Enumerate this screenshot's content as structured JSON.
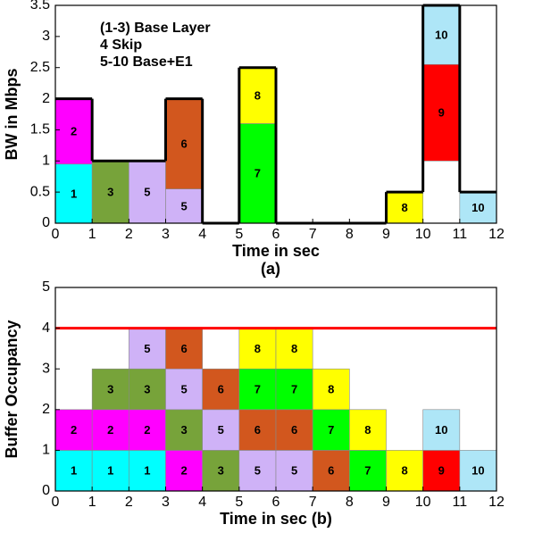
{
  "chart_data": [
    {
      "type": "bar",
      "x_label": "Time in sec",
      "caption": "(a)",
      "y_label": "BW in Mbps",
      "annotations": [
        "(1-3) Base Layer",
        "4 Skip",
        "5-10 Base+E1"
      ],
      "xlim": [
        0,
        12
      ],
      "xticks": [
        0,
        1,
        2,
        3,
        4,
        5,
        6,
        7,
        8,
        9,
        10,
        11,
        12
      ],
      "ylim": [
        0,
        3.5
      ],
      "yticks": [
        0,
        0.5,
        1,
        1.5,
        2,
        2.5,
        3,
        3.5
      ],
      "blocks": [
        {
          "label": "1",
          "color": "#00ffff",
          "x": [
            0,
            1
          ],
          "y": [
            0,
            0.95
          ]
        },
        {
          "label": "2",
          "color": "#ff00ff",
          "x": [
            0,
            1
          ],
          "y": [
            0.95,
            2
          ]
        },
        {
          "label": "3",
          "color": "#77a33a",
          "x": [
            1,
            2
          ],
          "y": [
            0,
            1
          ]
        },
        {
          "label": "5",
          "color": "#cfb2f7",
          "x": [
            2,
            3
          ],
          "y": [
            0,
            1
          ]
        },
        {
          "label": "5",
          "color": "#cfb2f7",
          "x": [
            3,
            4
          ],
          "y": [
            0,
            0.55
          ]
        },
        {
          "label": "6",
          "color": "#d2571e",
          "x": [
            3,
            4
          ],
          "y": [
            0.55,
            2
          ]
        },
        {
          "label": "7",
          "color": "#00ff00",
          "x": [
            5,
            6
          ],
          "y": [
            0,
            1.6
          ]
        },
        {
          "label": "8",
          "color": "#ffff00",
          "x": [
            5,
            6
          ],
          "y": [
            1.6,
            2.5
          ]
        },
        {
          "label": "8",
          "color": "#ffff00",
          "x": [
            9,
            10
          ],
          "y": [
            0,
            0.5
          ]
        },
        {
          "label": "9",
          "color": "#ff0000",
          "x": [
            10,
            11
          ],
          "y": [
            1,
            2.55
          ]
        },
        {
          "label": "10",
          "color": "#aee6f7",
          "x": [
            10,
            11
          ],
          "y": [
            2.55,
            3.5
          ]
        },
        {
          "label": "10",
          "color": "#aee6f7",
          "x": [
            11,
            12
          ],
          "y": [
            0,
            0.5
          ]
        }
      ],
      "step_line": {
        "color": "#000000",
        "edges": [
          0,
          1,
          3,
          4,
          5,
          6,
          9,
          10,
          11,
          12
        ],
        "values": [
          2,
          1,
          2,
          0,
          2.5,
          0,
          0.5,
          3.5,
          0.5
        ]
      }
    },
    {
      "type": "bar",
      "x_label": "Time in sec (b)",
      "y_label": "Buffer Occupancy",
      "xlim": [
        0,
        12
      ],
      "xticks": [
        0,
        1,
        2,
        3,
        4,
        5,
        6,
        7,
        8,
        9,
        10,
        11,
        12
      ],
      "ylim": [
        0,
        5
      ],
      "yticks": [
        0,
        1,
        2,
        3,
        4,
        5
      ],
      "threshold": {
        "value": 4,
        "color": "#ff0000"
      },
      "blocks": [
        {
          "label": "1",
          "color": "#00ffff",
          "x": [
            0,
            1
          ],
          "y": [
            0,
            1
          ]
        },
        {
          "label": "2",
          "color": "#ff00ff",
          "x": [
            0,
            1
          ],
          "y": [
            1,
            2
          ]
        },
        {
          "label": "1",
          "color": "#00ffff",
          "x": [
            1,
            2
          ],
          "y": [
            0,
            1
          ]
        },
        {
          "label": "2",
          "color": "#ff00ff",
          "x": [
            1,
            2
          ],
          "y": [
            1,
            2
          ]
        },
        {
          "label": "3",
          "color": "#77a33a",
          "x": [
            1,
            2
          ],
          "y": [
            2,
            3
          ]
        },
        {
          "label": "1",
          "color": "#00ffff",
          "x": [
            2,
            3
          ],
          "y": [
            0,
            1
          ]
        },
        {
          "label": "2",
          "color": "#ff00ff",
          "x": [
            2,
            3
          ],
          "y": [
            1,
            2
          ]
        },
        {
          "label": "3",
          "color": "#77a33a",
          "x": [
            2,
            3
          ],
          "y": [
            2,
            3
          ]
        },
        {
          "label": "5",
          "color": "#cfb2f7",
          "x": [
            2,
            3
          ],
          "y": [
            3,
            4
          ]
        },
        {
          "label": "2",
          "color": "#ff00ff",
          "x": [
            3,
            4
          ],
          "y": [
            0,
            1
          ]
        },
        {
          "label": "3",
          "color": "#77a33a",
          "x": [
            3,
            4
          ],
          "y": [
            1,
            2
          ]
        },
        {
          "label": "5",
          "color": "#cfb2f7",
          "x": [
            3,
            4
          ],
          "y": [
            2,
            3
          ]
        },
        {
          "label": "6",
          "color": "#d2571e",
          "x": [
            3,
            4
          ],
          "y": [
            3,
            4
          ]
        },
        {
          "label": "3",
          "color": "#77a33a",
          "x": [
            4,
            5
          ],
          "y": [
            0,
            1
          ]
        },
        {
          "label": "5",
          "color": "#cfb2f7",
          "x": [
            4,
            5
          ],
          "y": [
            1,
            2
          ]
        },
        {
          "label": "6",
          "color": "#d2571e",
          "x": [
            4,
            5
          ],
          "y": [
            2,
            3
          ]
        },
        {
          "label": "5",
          "color": "#cfb2f7",
          "x": [
            5,
            6
          ],
          "y": [
            0,
            1
          ]
        },
        {
          "label": "6",
          "color": "#d2571e",
          "x": [
            5,
            6
          ],
          "y": [
            1,
            2
          ]
        },
        {
          "label": "7",
          "color": "#00ff00",
          "x": [
            5,
            6
          ],
          "y": [
            2,
            3
          ]
        },
        {
          "label": "8",
          "color": "#ffff00",
          "x": [
            5,
            6
          ],
          "y": [
            3,
            4
          ]
        },
        {
          "label": "5",
          "color": "#cfb2f7",
          "x": [
            6,
            7
          ],
          "y": [
            0,
            1
          ]
        },
        {
          "label": "6",
          "color": "#d2571e",
          "x": [
            6,
            7
          ],
          "y": [
            1,
            2
          ]
        },
        {
          "label": "7",
          "color": "#00ff00",
          "x": [
            6,
            7
          ],
          "y": [
            2,
            3
          ]
        },
        {
          "label": "8",
          "color": "#ffff00",
          "x": [
            6,
            7
          ],
          "y": [
            3,
            4
          ]
        },
        {
          "label": "6",
          "color": "#d2571e",
          "x": [
            7,
            8
          ],
          "y": [
            0,
            1
          ]
        },
        {
          "label": "7",
          "color": "#00ff00",
          "x": [
            7,
            8
          ],
          "y": [
            1,
            2
          ]
        },
        {
          "label": "8",
          "color": "#ffff00",
          "x": [
            7,
            8
          ],
          "y": [
            2,
            3
          ]
        },
        {
          "label": "7",
          "color": "#00ff00",
          "x": [
            8,
            9
          ],
          "y": [
            0,
            1
          ]
        },
        {
          "label": "8",
          "color": "#ffff00",
          "x": [
            8,
            9
          ],
          "y": [
            1,
            2
          ]
        },
        {
          "label": "8",
          "color": "#ffff00",
          "x": [
            9,
            10
          ],
          "y": [
            0,
            1
          ]
        },
        {
          "label": "9",
          "color": "#ff0000",
          "x": [
            10,
            11
          ],
          "y": [
            0,
            1
          ]
        },
        {
          "label": "10",
          "color": "#aee6f7",
          "x": [
            10,
            11
          ],
          "y": [
            1,
            2
          ]
        },
        {
          "label": "10",
          "color": "#aee6f7",
          "x": [
            11,
            12
          ],
          "y": [
            0,
            1
          ]
        }
      ]
    }
  ]
}
